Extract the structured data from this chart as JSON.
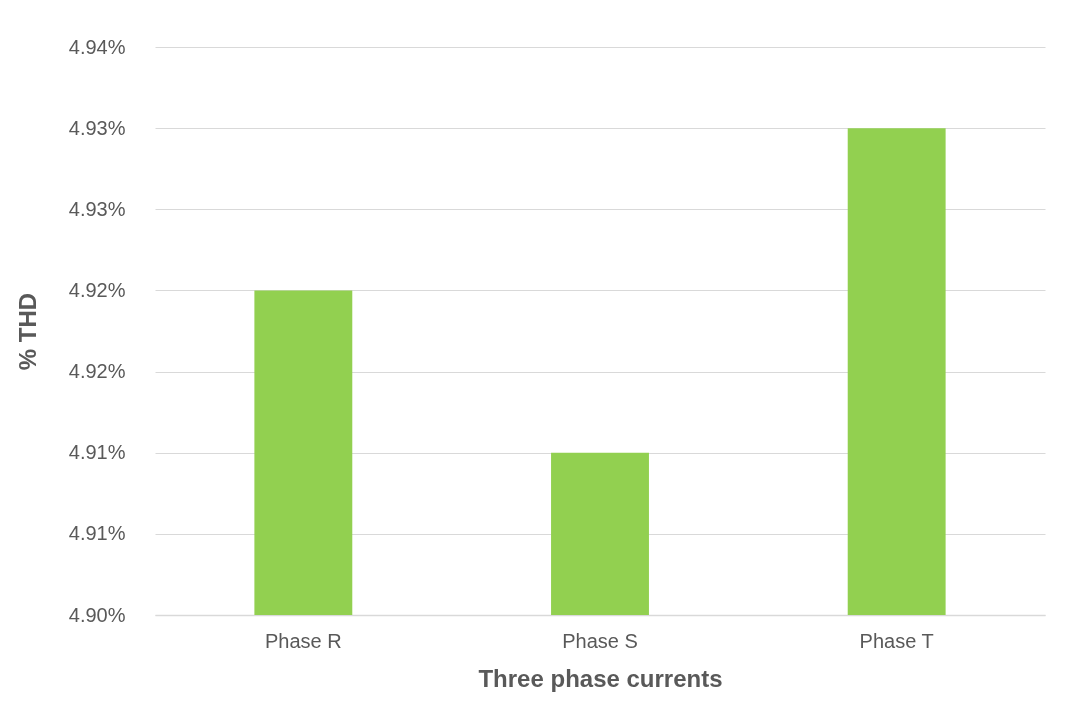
{
  "chart_data": {
    "type": "bar",
    "xlabel": "Three phase currents",
    "ylabel": "% THD",
    "categories": [
      "Phase R",
      "Phase S",
      "Phase T"
    ],
    "values": [
      4.92,
      4.91,
      4.93
    ],
    "color": "#92d050",
    "ylim": [
      4.9,
      4.935
    ],
    "yticks": [
      {
        "value": 4.9,
        "label": "4.90%"
      },
      {
        "value": 4.905,
        "label": "4.91%"
      },
      {
        "value": 4.91,
        "label": "4.91%"
      },
      {
        "value": 4.915,
        "label": "4.92%"
      },
      {
        "value": 4.92,
        "label": "4.92%"
      },
      {
        "value": 4.925,
        "label": "4.93%"
      },
      {
        "value": 4.93,
        "label": "4.93%"
      },
      {
        "value": 4.935,
        "label": "4.94%"
      }
    ],
    "grid": "y"
  }
}
